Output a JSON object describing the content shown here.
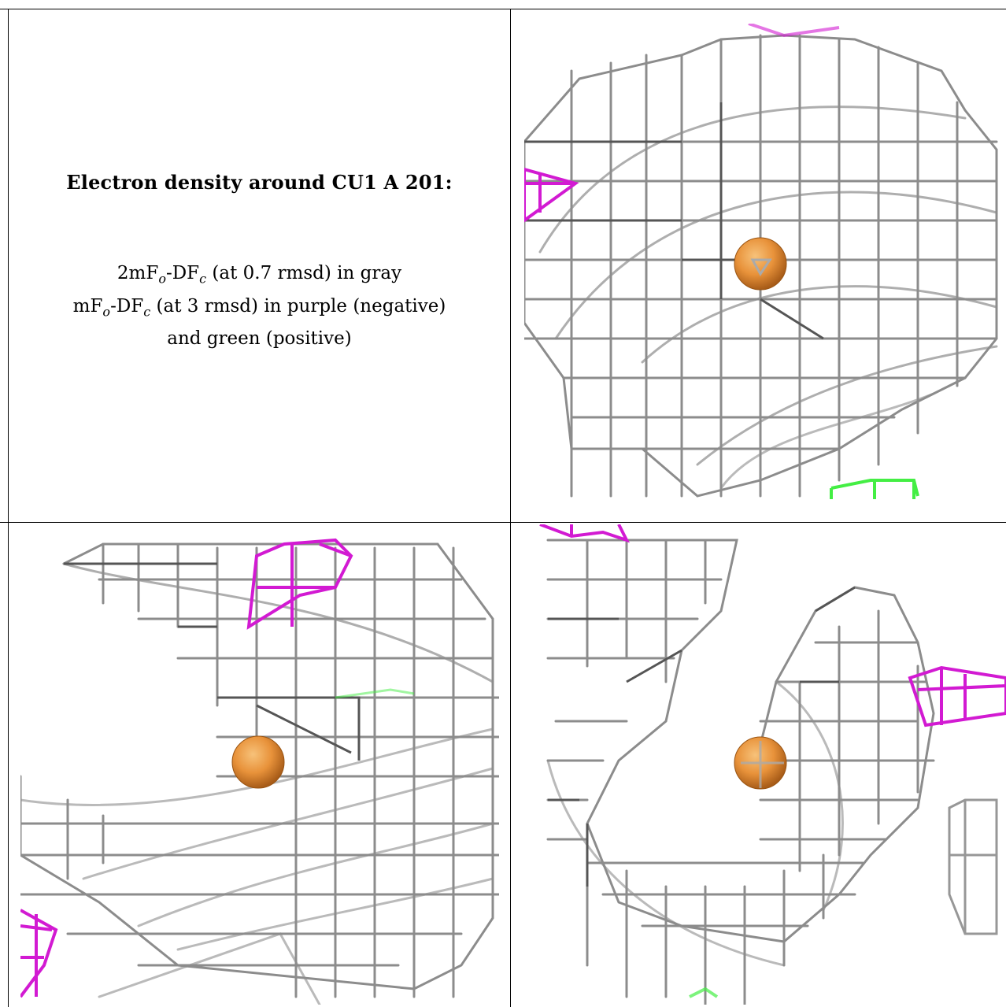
{
  "caption": {
    "title": "Electron density around CU1 A 201:",
    "line1_prefix": "2mF",
    "line1_sub1": "o",
    "line1_mid": "-DF",
    "line1_sub2": "c",
    "line1_suffix": " (at 0.7 rmsd) in gray",
    "line2_prefix": "mF",
    "line2_sub1": "o",
    "line2_mid": "-DF",
    "line2_sub2": "c",
    "line2_suffix": " (at 3 rmsd) in purple (negative)",
    "line3": "and green (positive)"
  },
  "colors": {
    "mesh_gray": "#8a8a8a",
    "mesh_dark": "#5a5a5a",
    "negative_purple": "#d21ad2",
    "positive_green": "#44ee44",
    "copper_orange": "#e8923a"
  },
  "panels": [
    {
      "name": "view-top-right",
      "has_copper_atom": true,
      "has_negative_density": true,
      "has_positive_density": true
    },
    {
      "name": "view-bottom-left",
      "has_copper_atom": true,
      "has_negative_density": true,
      "has_positive_density": true
    },
    {
      "name": "view-bottom-right",
      "has_copper_atom": true,
      "has_negative_density": true,
      "has_positive_density": true
    }
  ]
}
